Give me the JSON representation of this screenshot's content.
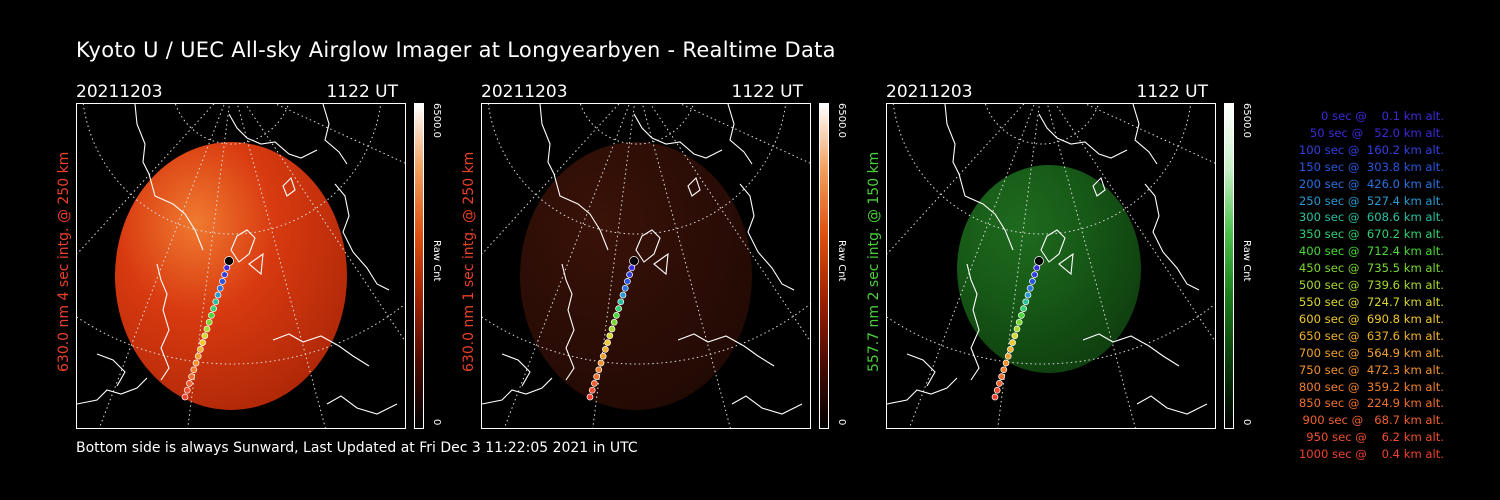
{
  "title": "Kyoto U / UEC All-sky Airglow Imager at Longyearbyen - Realtime Data",
  "footer": "Bottom side is always Sunward, Last Updated at Fri Dec  3 11:22:05 2021 in UTC",
  "panels": [
    {
      "date": "20211203",
      "time": "1122 UT",
      "ylabel": "630.0 nm 4 sec intg. @ 250 km",
      "label_color": "#e8412a",
      "cbar_max": "6500.0",
      "cbar_label": "Raw Cnt",
      "cbar_min": "0",
      "colormap": "red",
      "brightness": 0.95
    },
    {
      "date": "20211203",
      "time": "1122 UT",
      "ylabel": "630.0 nm 1 sec intg. @ 250 km",
      "label_color": "#e8412a",
      "cbar_max": "6500.0",
      "cbar_label": "Raw Cnt",
      "cbar_min": "0",
      "colormap": "red",
      "brightness": 0.25
    },
    {
      "date": "20211203",
      "time": "1122 UT",
      "ylabel": "557.7 nm 2 sec intg. @ 150 km",
      "label_color": "#4ad13a",
      "cbar_max": "6500.0",
      "cbar_label": "Raw Cnt",
      "cbar_min": "0",
      "colormap": "green",
      "brightness": 0.35
    }
  ],
  "legend": [
    {
      "text": "   0 sec @    0.1 km alt.",
      "color": "#3b2bd8"
    },
    {
      "text": "  50 sec @   52.0 km alt.",
      "color": "#3b2bd8"
    },
    {
      "text": " 100 sec @  160.2 km alt.",
      "color": "#3340e0"
    },
    {
      "text": " 150 sec @  303.8 km alt.",
      "color": "#2a56e0"
    },
    {
      "text": " 200 sec @  426.0 km alt.",
      "color": "#2a72e0"
    },
    {
      "text": " 250 sec @  527.4 km alt.",
      "color": "#2a9ad0"
    },
    {
      "text": " 300 sec @  608.6 km alt.",
      "color": "#2ac0a0"
    },
    {
      "text": " 350 sec @  670.2 km alt.",
      "color": "#34d070"
    },
    {
      "text": " 400 sec @  712.4 km alt.",
      "color": "#4ad83a"
    },
    {
      "text": " 450 sec @  735.5 km alt.",
      "color": "#7ad830"
    },
    {
      "text": " 500 sec @  739.6 km alt.",
      "color": "#a8d830"
    },
    {
      "text": " 550 sec @  724.7 km alt.",
      "color": "#d8d830"
    },
    {
      "text": " 600 sec @  690.8 km alt.",
      "color": "#f0c830"
    },
    {
      "text": " 650 sec @  637.6 km alt.",
      "color": "#f0b030"
    },
    {
      "text": " 700 sec @  564.9 km alt.",
      "color": "#f0a030"
    },
    {
      "text": " 750 sec @  472.3 km alt.",
      "color": "#f09030"
    },
    {
      "text": " 800 sec @  359.2 km alt.",
      "color": "#f08030"
    },
    {
      "text": " 850 sec @  224.9 km alt.",
      "color": "#f07030"
    },
    {
      "text": " 900 sec @   68.7 km alt.",
      "color": "#f06030"
    },
    {
      "text": " 950 sec @    6.2 km alt.",
      "color": "#f05030"
    },
    {
      "text": "1000 sec @    0.4 km alt.",
      "color": "#f04030"
    }
  ]
}
